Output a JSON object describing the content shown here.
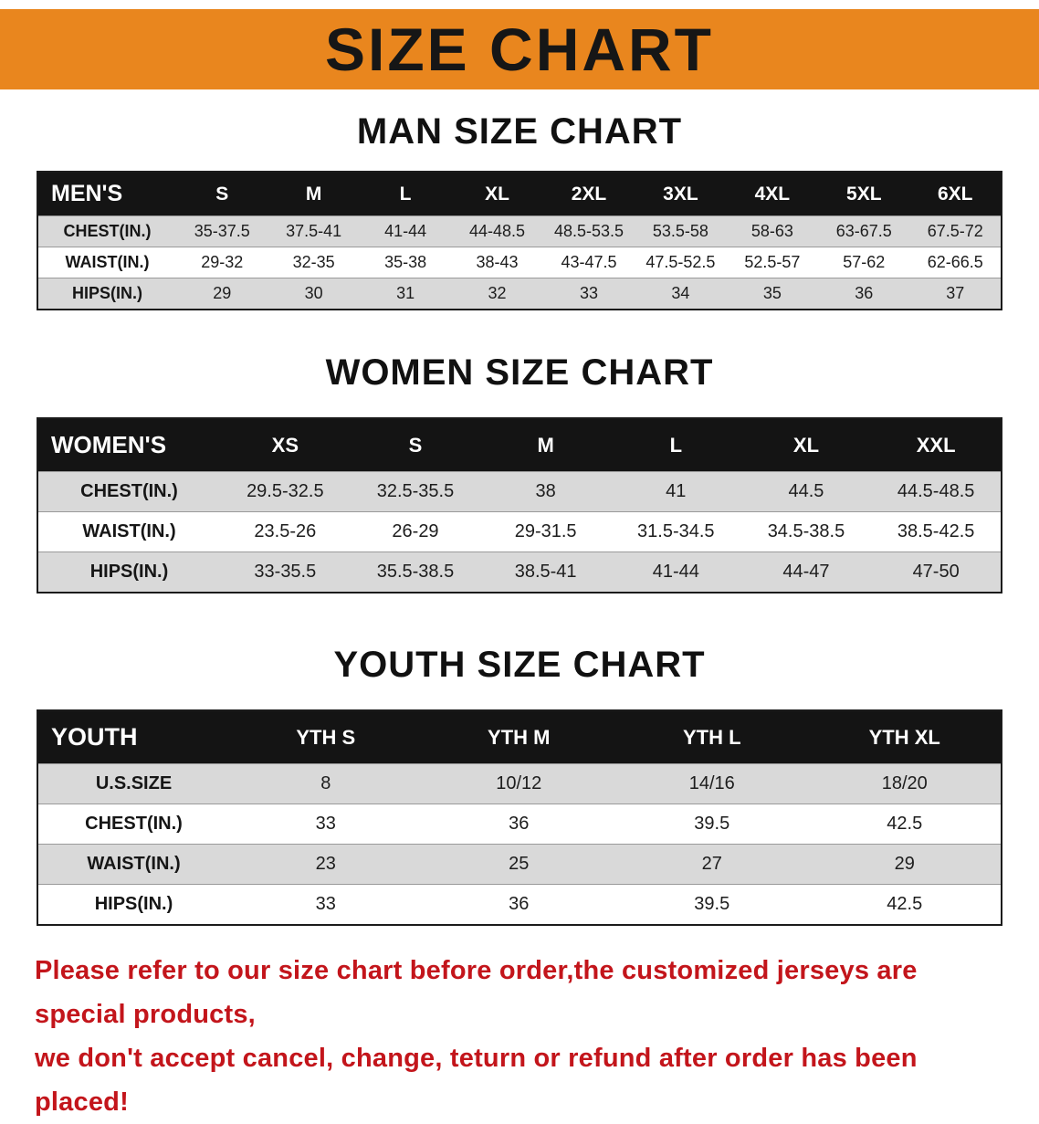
{
  "colors": {
    "banner_bg": "#E9861E",
    "table_header_bg": "#141414",
    "row_stripe": "#D9D9D9",
    "footer_text": "#C3151B"
  },
  "banner": {
    "title": "SIZE CHART"
  },
  "sections": {
    "men": {
      "heading": "MAN SIZE CHART",
      "table": {
        "header": [
          "MEN'S",
          "S",
          "M",
          "L",
          "XL",
          "2XL",
          "3XL",
          "4XL",
          "5XL",
          "6XL"
        ],
        "rows": [
          [
            "CHEST(IN.)",
            "35-37.5",
            "37.5-41",
            "41-44",
            "44-48.5",
            "48.5-53.5",
            "53.5-58",
            "58-63",
            "63-67.5",
            "67.5-72"
          ],
          [
            "WAIST(IN.)",
            "29-32",
            "32-35",
            "35-38",
            "38-43",
            "43-47.5",
            "47.5-52.5",
            "52.5-57",
            "57-62",
            "62-66.5"
          ],
          [
            "HIPS(IN.)",
            "29",
            "30",
            "31",
            "32",
            "33",
            "34",
            "35",
            "36",
            "37"
          ]
        ]
      }
    },
    "women": {
      "heading": "WOMEN SIZE CHART",
      "table": {
        "header": [
          "WOMEN'S",
          "XS",
          "S",
          "M",
          "L",
          "XL",
          "XXL"
        ],
        "rows": [
          [
            "CHEST(IN.)",
            "29.5-32.5",
            "32.5-35.5",
            "38",
            "41",
            "44.5",
            "44.5-48.5"
          ],
          [
            "WAIST(IN.)",
            "23.5-26",
            "26-29",
            "29-31.5",
            "31.5-34.5",
            "34.5-38.5",
            "38.5-42.5"
          ],
          [
            "HIPS(IN.)",
            "33-35.5",
            "35.5-38.5",
            "38.5-41",
            "41-44",
            "44-47",
            "47-50"
          ]
        ]
      }
    },
    "youth": {
      "heading": "YOUTH SIZE CHART",
      "table": {
        "header": [
          "YOUTH",
          "YTH S",
          "YTH M",
          "YTH L",
          "YTH XL"
        ],
        "rows": [
          [
            "U.S.SIZE",
            "8",
            "10/12",
            "14/16",
            "18/20"
          ],
          [
            "CHEST(IN.)",
            "33",
            "36",
            "39.5",
            "42.5"
          ],
          [
            "WAIST(IN.)",
            "23",
            "25",
            "27",
            "29"
          ],
          [
            "HIPS(IN.)",
            "33",
            "36",
            "39.5",
            "42.5"
          ]
        ]
      }
    }
  },
  "footer": {
    "line1": "Please refer to our size chart before order,the customized jerseys are special products,",
    "line2": "we don't accept cancel, change, teturn or refund after order has been placed!"
  }
}
